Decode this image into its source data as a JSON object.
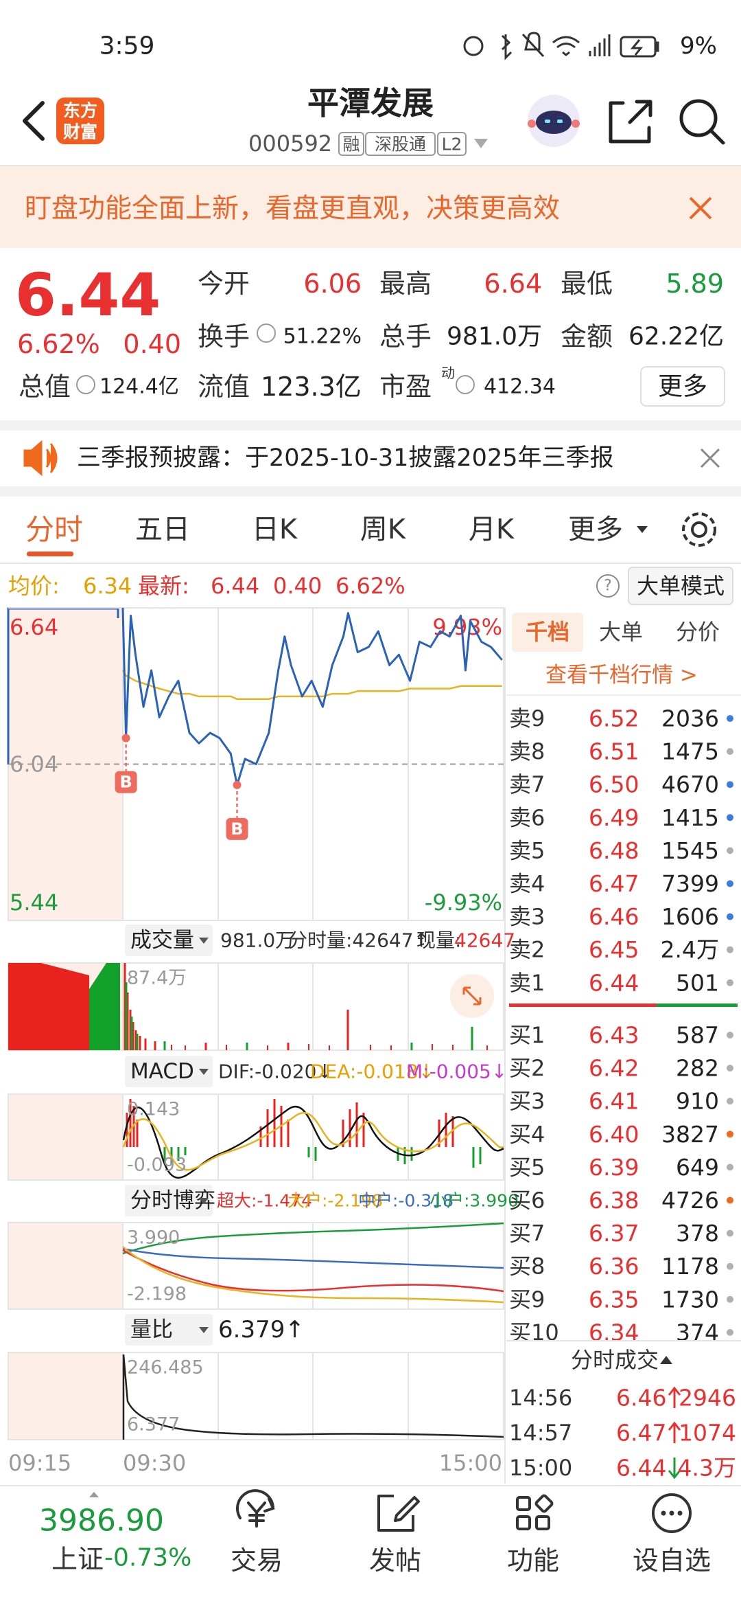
{
  "status_bar": {
    "time": "3:59",
    "battery": "9%"
  },
  "header": {
    "logo": [
      "东方",
      "财富"
    ],
    "title": "平潭发展",
    "code": "000592",
    "badges": [
      "融",
      "深股通",
      "L2"
    ]
  },
  "banner": {
    "text": "盯盘功能全面上新，看盘更直观，决策更高效"
  },
  "quote": {
    "price": "6.44",
    "change_pct": "6.62%",
    "change": "0.40",
    "fields": [
      {
        "label": "今开",
        "value": "6.06",
        "color": "#e93030"
      },
      {
        "label": "最高",
        "value": "6.64",
        "color": "#e93030"
      },
      {
        "label": "最低",
        "value": "5.89",
        "color": "#1a9c3c"
      },
      {
        "label": "换手",
        "value": "51.22%",
        "color": "#222222"
      },
      {
        "label": "总手",
        "value": "981.0万",
        "color": "#222222"
      },
      {
        "label": "金额",
        "value": "62.22亿",
        "color": "#222222"
      },
      {
        "label": "总值",
        "value": "124.4亿",
        "color": "#222222"
      },
      {
        "label": "流值",
        "value": "123.3亿",
        "color": "#222222"
      },
      {
        "label": "市盈",
        "sup": "动",
        "value": "412.34",
        "color": "#222222"
      }
    ],
    "more": "更多"
  },
  "notice": {
    "text": "三季报预披露：于2025-10-31披露2025年三季报"
  },
  "tabs": [
    "分时",
    "五日",
    "日K",
    "周K",
    "月K",
    "更多"
  ],
  "summary": {
    "avg_label": "均价:",
    "avg": "6.34",
    "last_label": "最新:",
    "last": "6.44",
    "change": "0.40",
    "change_pct": "6.62%",
    "help": "?",
    "mode": "大单模式"
  },
  "chart_data": {
    "type": "line",
    "x": [
      0,
      2,
      5,
      8,
      13,
      18,
      23,
      29,
      35,
      42,
      48,
      55,
      61,
      68,
      72,
      77,
      84,
      92,
      98,
      102,
      106,
      113,
      119,
      126,
      132,
      139,
      142,
      148,
      155,
      161,
      168,
      174,
      181,
      187,
      194,
      200,
      206,
      213,
      216,
      219,
      226,
      232,
      239
    ],
    "series": [
      {
        "name": "最新",
        "color": "#2a62b8",
        "values": [
          6.64,
          6.14,
          6.61,
          6.46,
          6.26,
          6.4,
          6.22,
          6.3,
          6.36,
          6.16,
          6.12,
          6.16,
          6.14,
          6.08,
          5.96,
          6.06,
          6.04,
          6.16,
          6.4,
          6.53,
          6.42,
          6.3,
          6.36,
          6.26,
          6.42,
          6.53,
          6.62,
          6.47,
          6.49,
          6.55,
          6.42,
          6.46,
          6.36,
          6.51,
          6.49,
          6.55,
          6.53,
          6.61,
          6.4,
          6.59,
          6.51,
          6.49,
          6.44
        ]
      },
      {
        "name": "均价",
        "color": "#e6b422",
        "values": [
          6.4,
          6.38,
          6.37,
          6.36,
          6.35,
          6.34,
          6.33,
          6.32,
          6.31,
          6.31,
          6.3,
          6.3,
          6.3,
          6.3,
          6.29,
          6.29,
          6.29,
          6.29,
          6.3,
          6.3,
          6.3,
          6.3,
          6.3,
          6.3,
          6.31,
          6.31,
          6.31,
          6.32,
          6.32,
          6.32,
          6.32,
          6.32,
          6.33,
          6.33,
          6.33,
          6.33,
          6.33,
          6.34,
          6.34,
          6.34,
          6.34,
          6.34,
          6.34
        ]
      }
    ],
    "markers": [
      {
        "label": "B",
        "x": 2,
        "y": 6.14
      },
      {
        "label": "B",
        "x": 72,
        "y": 5.96
      }
    ],
    "xlim": [
      0,
      240
    ],
    "ylim": [
      5.44,
      6.64
    ],
    "yticks": [
      6.64,
      6.04,
      5.44
    ],
    "ytick_colors": [
      "#e93030",
      "#999999",
      "#1a9c3c"
    ],
    "y2lim": [
      -9.93,
      9.93
    ],
    "y2ticks": [
      {
        "value": 9.93,
        "label": "9.93%"
      },
      {
        "value": -9.93,
        "label": "-9.93%"
      }
    ],
    "y2tick_colors": [
      "#e93030",
      "#1a9c3c"
    ],
    "grid": true
  },
  "indicators": [
    {
      "name": "成交量",
      "items": [
        {
          "text": "981.0万",
          "color": "#333333"
        },
        {
          "text": "分时量:42647↑",
          "color": "#333333"
        },
        {
          "text": "现量:",
          "color": "#333333"
        },
        {
          "text": "42647",
          "color": "#e93030"
        }
      ],
      "scale": [
        "87.4万"
      ]
    },
    {
      "name": "MACD",
      "items": [
        {
          "text": "DIF:-0.020↓",
          "color": "#333333"
        },
        {
          "text": "DEA:-0.018↓",
          "color": "#e6a000"
        },
        {
          "text": "M:-0.005↓",
          "color": "#c63ccf"
        }
      ],
      "scale": [
        "0.143",
        "-0.093"
      ]
    },
    {
      "name": "分时博弈",
      "items": [
        {
          "text": "超大:-1.474",
          "color": "#e93030"
        },
        {
          "text": "大户:-2.198",
          "color": "#e6a000"
        },
        {
          "text": "中户:-0.318",
          "color": "#3a6bc4"
        },
        {
          "text": "小户:3.990",
          "color": "#1a9c3c"
        }
      ],
      "scale": [
        "3.990",
        "-2.198"
      ]
    },
    {
      "name": "量比",
      "items": [
        {
          "text": "6.379↑",
          "color": "#222222"
        }
      ],
      "scale": [
        "246.485",
        "6.377"
      ]
    }
  ],
  "time_axis": [
    "09:15",
    "09:30",
    "15:00"
  ],
  "order_book": {
    "tabs": [
      "千档",
      "大单",
      "分价"
    ],
    "link": "查看千档行情 >",
    "asks": [
      {
        "label": "卖9",
        "price": "6.52",
        "volume": "2036",
        "dot": "#3d7be0"
      },
      {
        "label": "卖8",
        "price": "6.51",
        "volume": "1475",
        "dot": "#b0b0b0"
      },
      {
        "label": "卖7",
        "price": "6.50",
        "volume": "4670",
        "dot": "#3d7be0"
      },
      {
        "label": "卖6",
        "price": "6.49",
        "volume": "1415",
        "dot": "#3d7be0"
      },
      {
        "label": "卖5",
        "price": "6.48",
        "volume": "1545",
        "dot": "#b0b0b0"
      },
      {
        "label": "卖4",
        "price": "6.47",
        "volume": "7399",
        "dot": "#3d7be0"
      },
      {
        "label": "卖3",
        "price": "6.46",
        "volume": "1606",
        "dot": "#3d7be0"
      },
      {
        "label": "卖2",
        "price": "6.45",
        "volume": "2.4万",
        "dot": "#b0b0b0"
      },
      {
        "label": "卖1",
        "price": "6.44",
        "volume": "501",
        "dot": "#b0b0b0"
      }
    ],
    "bids": [
      {
        "label": "买1",
        "price": "6.43",
        "volume": "587",
        "dot": "#b0b0b0"
      },
      {
        "label": "买2",
        "price": "6.42",
        "volume": "282",
        "dot": "#b0b0b0"
      },
      {
        "label": "买3",
        "price": "6.41",
        "volume": "910",
        "dot": "#b0b0b0"
      },
      {
        "label": "买4",
        "price": "6.40",
        "volume": "3827",
        "dot": "#f06a1d"
      },
      {
        "label": "买5",
        "price": "6.39",
        "volume": "649",
        "dot": "#b0b0b0"
      },
      {
        "label": "买6",
        "price": "6.38",
        "volume": "4726",
        "dot": "#f06a1d"
      },
      {
        "label": "买7",
        "price": "6.37",
        "volume": "378",
        "dot": "#b0b0b0"
      },
      {
        "label": "买8",
        "price": "6.36",
        "volume": "1178",
        "dot": "#b0b0b0"
      },
      {
        "label": "买9",
        "price": "6.35",
        "volume": "1730",
        "dot": "#b0b0b0"
      },
      {
        "label": "买10",
        "price": "6.34",
        "volume": "374",
        "dot": "#b0b0b0"
      }
    ]
  },
  "trades": {
    "title": "分时成交",
    "rows": [
      {
        "time": "14:56",
        "price": "6.46",
        "dir": "up",
        "volume": "2946"
      },
      {
        "time": "14:57",
        "price": "6.47",
        "dir": "up",
        "volume": "1074"
      },
      {
        "time": "15:00",
        "price": "6.44",
        "dir": "down",
        "volume": "4.3万"
      }
    ]
  },
  "bottom_nav": {
    "index_value": "3986.90",
    "index_name": "上证",
    "index_change": "-0.73%",
    "items": [
      "交易",
      "发帖",
      "功能",
      "设自选"
    ]
  }
}
